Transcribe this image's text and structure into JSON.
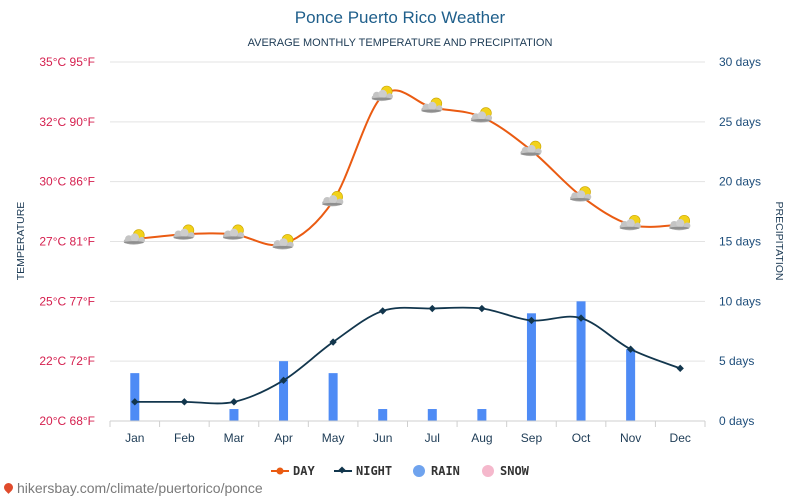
{
  "header": {
    "title": "Ponce Puerto Rico Weather",
    "subtitle": "AVERAGE MONTHLY TEMPERATURE AND PRECIPITATION"
  },
  "axes": {
    "left_title": "TEMPERATURE",
    "right_title": "PRECIPITATION",
    "left_ticks": [
      "35°C 95°F",
      "32°C 90°F",
      "30°C 86°F",
      "27°C 81°F",
      "25°C 77°F",
      "22°C 72°F",
      "20°C 68°F"
    ],
    "right_ticks": [
      "30 days",
      "25 days",
      "20 days",
      "15 days",
      "10 days",
      "5 days",
      "0 days"
    ]
  },
  "legend": {
    "day": "DAY",
    "night": "NIGHT",
    "rain": "RAIN",
    "snow": "SNOW"
  },
  "source": "hikersbay.com/climate/puertorico/ponce",
  "colors": {
    "day": "#ea5b12",
    "night": "#12364d",
    "rain": "#4e8bf5",
    "snow": "#f5b8cc",
    "left_axis": "#d5204f",
    "right_axis": "#1d4d7a"
  },
  "chart_data": {
    "type": "line",
    "categories": [
      "Jan",
      "Feb",
      "Mar",
      "Apr",
      "May",
      "Jun",
      "Jul",
      "Aug",
      "Sep",
      "Oct",
      "Nov",
      "Dec"
    ],
    "left_axis_range_c": [
      20,
      35
    ],
    "right_axis_range_days": [
      0,
      30
    ],
    "series": [
      {
        "name": "DAY",
        "axis": "left",
        "unit": "°C",
        "values": [
          27.6,
          27.8,
          27.8,
          27.4,
          29.2,
          33.6,
          33.1,
          32.7,
          31.3,
          29.4,
          28.2,
          28.2
        ]
      },
      {
        "name": "NIGHT",
        "axis": "left",
        "unit": "°C",
        "values": [
          20.8,
          20.8,
          20.8,
          21.7,
          23.3,
          24.6,
          24.7,
          24.7,
          24.2,
          24.3,
          23.0,
          22.2
        ]
      },
      {
        "name": "RAIN",
        "type": "bar",
        "axis": "right",
        "unit": "days",
        "values": [
          4,
          0,
          1,
          5,
          4,
          1,
          1,
          1,
          9,
          10,
          6,
          0
        ]
      },
      {
        "name": "SNOW",
        "type": "bar",
        "axis": "right",
        "unit": "days",
        "values": [
          0,
          0,
          0,
          0,
          0,
          0,
          0,
          0,
          0,
          0,
          0,
          0
        ]
      }
    ],
    "grid": true,
    "legend_position": "bottom"
  }
}
